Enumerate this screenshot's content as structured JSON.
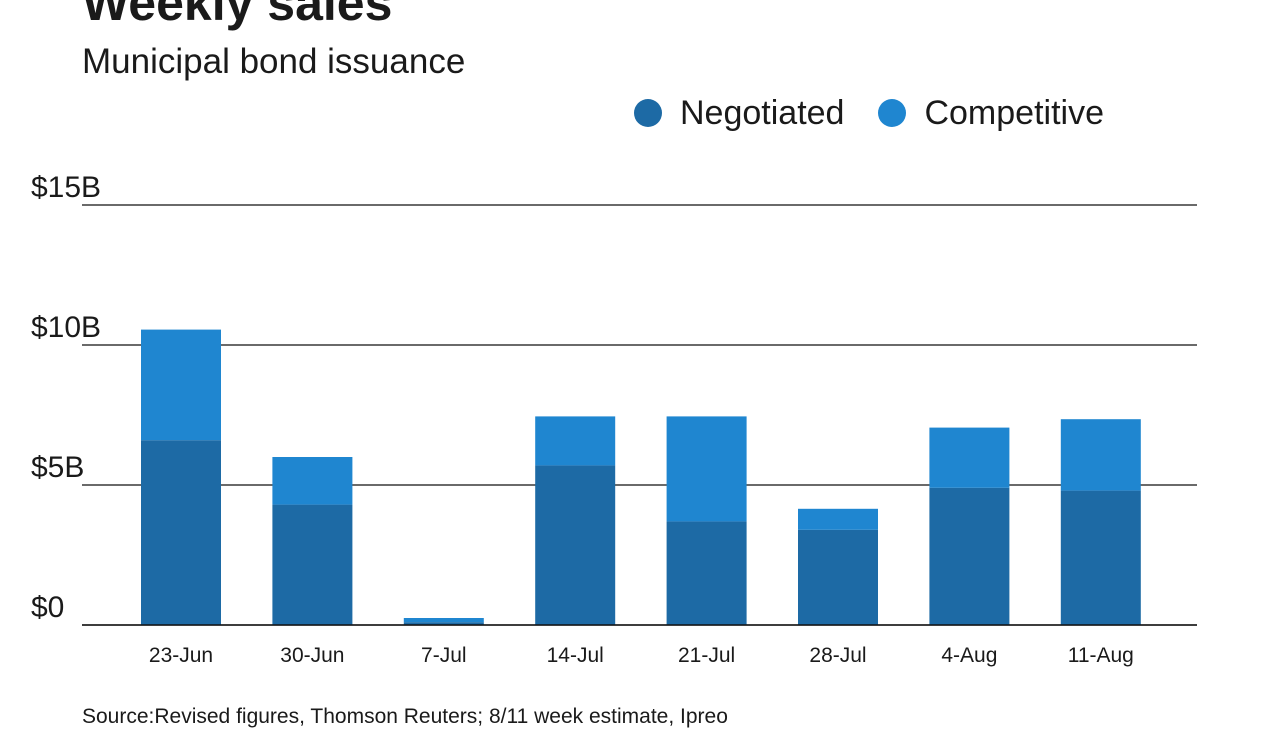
{
  "chart_data": {
    "type": "bar",
    "stacked": true,
    "title": "Weekly sales",
    "subtitle": "Municipal bond issuance",
    "categories": [
      "23-Jun",
      "30-Jun",
      "7-Jul",
      "14-Jul",
      "21-Jul",
      "28-Jul",
      "4-Aug",
      "11-Aug"
    ],
    "series": [
      {
        "name": "Negotiated",
        "color": "#1d6aa5",
        "values": [
          6.6,
          4.3,
          0.1,
          5.7,
          3.7,
          3.4,
          4.9,
          4.8
        ]
      },
      {
        "name": "Competitive",
        "color": "#1f86d0",
        "values": [
          3.95,
          1.7,
          0.15,
          1.75,
          3.75,
          0.75,
          2.15,
          2.55
        ]
      }
    ],
    "yticks": [
      0,
      5,
      10,
      15
    ],
    "ytick_labels": [
      "$0",
      "$5B",
      "$10B",
      "$15B"
    ],
    "ylim": [
      0,
      15
    ],
    "xlabel": "",
    "ylabel": "",
    "legend_position": "top-right",
    "grid": true,
    "source": "Source:Revised figures, Thomson Reuters; 8/11 week estimate, Ipreo"
  }
}
